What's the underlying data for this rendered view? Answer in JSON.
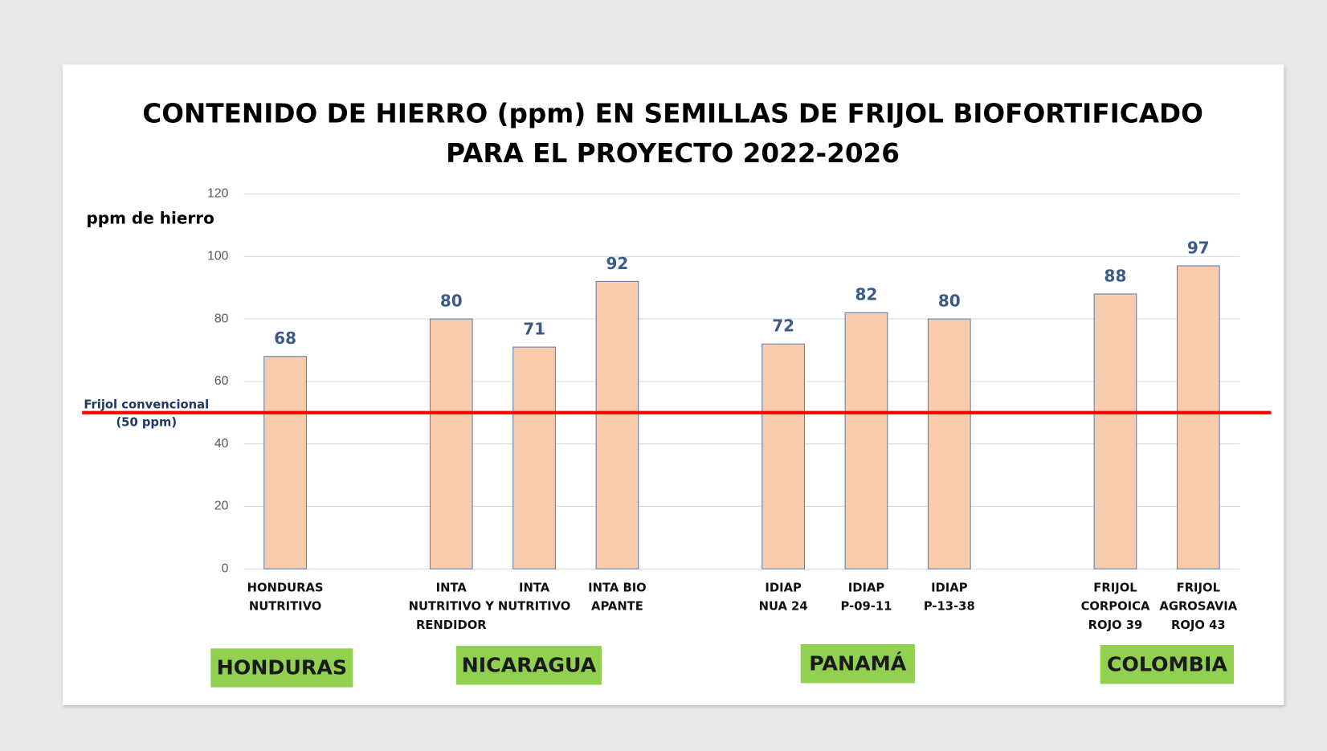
{
  "chart_data": {
    "type": "bar",
    "title": "CONTENIDO DE HIERRO (ppm) EN SEMILLAS DE FRIJOL BIOFORTIFICADO\nPARA EL PROYECTO 2022-2026",
    "y_label": "ppm de hierro",
    "categories": [
      "HONDURAS\nNUTRITIVO",
      null,
      "INTA\nNUTRITIVO Y\nRENDIDOR",
      "INTA\nNUTRITIVO",
      "INTA BIO\nAPANTE",
      null,
      "IDIAP\nNUA 24",
      "IDIAP\nP-09-11",
      "IDIAP\nP-13-38",
      null,
      "FRIJOL\nCORPOICA\nROJO 39",
      "FRIJOL\nAGROSAVIA\nROJO 43"
    ],
    "values": [
      68,
      null,
      80,
      71,
      92,
      null,
      72,
      82,
      80,
      null,
      88,
      97
    ],
    "color": "#f8cbad",
    "ylim": [
      0,
      120
    ],
    "yticks": [
      0,
      20,
      40,
      60,
      80,
      100,
      120
    ],
    "grid": true,
    "reference_line": {
      "value": 50,
      "label": "Frijol convencional\n(50 ppm)",
      "color": "#ff0000"
    },
    "groups": [
      "HONDURAS",
      "NICARAGUA",
      "PANAMÁ",
      "COLOMBIA"
    ]
  }
}
